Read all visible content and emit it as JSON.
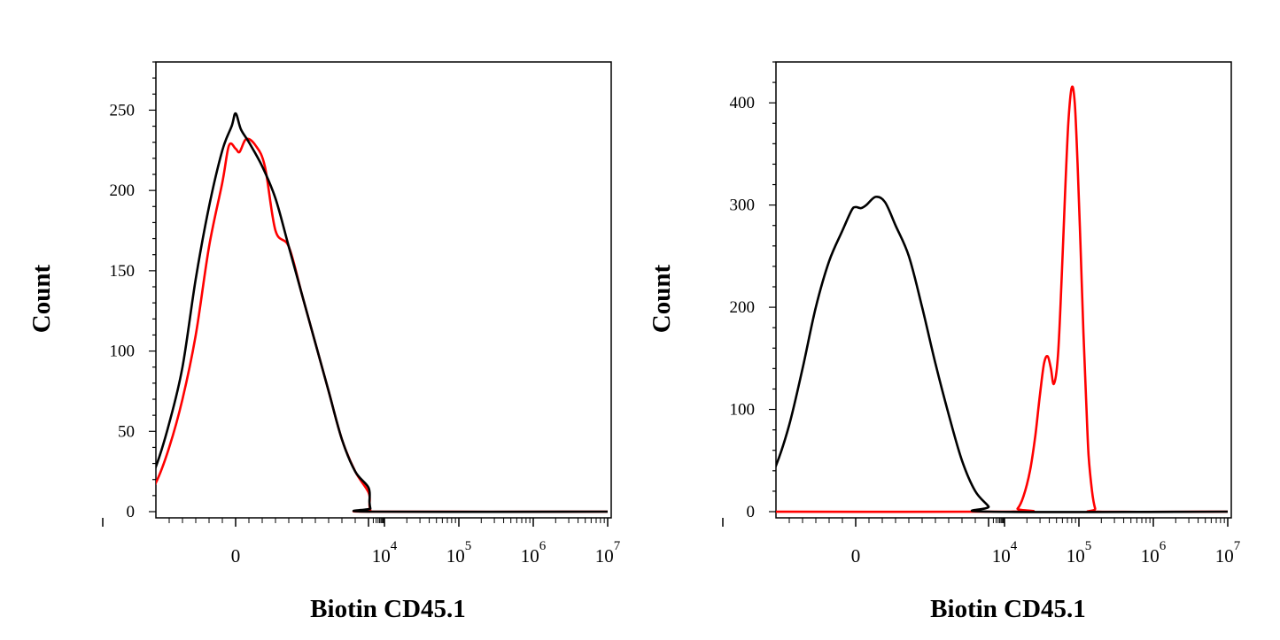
{
  "chart_data": [
    {
      "type": "line",
      "xlabel": "Biotin CD45.1",
      "ylabel": "Count",
      "x_scale": "biexponential",
      "ylim": [
        0,
        280
      ],
      "y_ticks": [
        0,
        50,
        100,
        150,
        200,
        250
      ],
      "x_ticks": [
        {
          "base": "0",
          "exp": ""
        },
        {
          "base": "10",
          "exp": "4"
        },
        {
          "base": "10",
          "exp": "5"
        },
        {
          "base": "10",
          "exp": "6"
        },
        {
          "base": "10",
          "exp": "7"
        }
      ],
      "grid": false,
      "legend": "none",
      "series": [
        {
          "color": "#000000",
          "points": [
            [
              -1000,
              0
            ],
            [
              -800,
              2
            ],
            [
              -700,
              10
            ],
            [
              -600,
              28
            ],
            [
              -500,
              55
            ],
            [
              -400,
              90
            ],
            [
              -300,
              145
            ],
            [
              -200,
              190
            ],
            [
              -100,
              225
            ],
            [
              -30,
              240
            ],
            [
              0,
              248
            ],
            [
              40,
              238
            ],
            [
              100,
              230
            ],
            [
              200,
              215
            ],
            [
              300,
              195
            ],
            [
              400,
              165
            ],
            [
              500,
              135
            ],
            [
              600,
              105
            ],
            [
              700,
              75
            ],
            [
              800,
              45
            ],
            [
              900,
              25
            ],
            [
              1000,
              15
            ],
            [
              1150,
              6
            ],
            [
              1300,
              2
            ],
            [
              1500,
              0
            ],
            [
              10000000,
              0
            ]
          ]
        },
        {
          "color": "#ff0000",
          "points": [
            [
              -1000,
              0
            ],
            [
              -800,
              1
            ],
            [
              -700,
              6
            ],
            [
              -600,
              18
            ],
            [
              -500,
              40
            ],
            [
              -400,
              70
            ],
            [
              -300,
              110
            ],
            [
              -200,
              165
            ],
            [
              -100,
              205
            ],
            [
              -50,
              228
            ],
            [
              0,
              226
            ],
            [
              30,
              224
            ],
            [
              80,
              232
            ],
            [
              150,
              228
            ],
            [
              220,
              215
            ],
            [
              300,
              175
            ],
            [
              400,
              165
            ],
            [
              500,
              135
            ],
            [
              600,
              105
            ],
            [
              700,
              75
            ],
            [
              800,
              45
            ],
            [
              900,
              25
            ],
            [
              1000,
              12
            ],
            [
              1150,
              4
            ],
            [
              1300,
              1
            ],
            [
              1500,
              0
            ],
            [
              10000000,
              0
            ]
          ]
        }
      ]
    },
    {
      "type": "line",
      "xlabel": "Biotin CD45.1",
      "ylabel": "Count",
      "x_scale": "biexponential",
      "ylim": [
        0,
        440
      ],
      "y_ticks": [
        0,
        100,
        200,
        300,
        400
      ],
      "x_ticks": [
        {
          "base": "0",
          "exp": ""
        },
        {
          "base": "10",
          "exp": "4"
        },
        {
          "base": "10",
          "exp": "5"
        },
        {
          "base": "10",
          "exp": "6"
        },
        {
          "base": "10",
          "exp": "7"
        }
      ],
      "grid": false,
      "legend": "none",
      "series": [
        {
          "color": "#000000",
          "points": [
            [
              -1000,
              0
            ],
            [
              -800,
              5
            ],
            [
              -700,
              20
            ],
            [
              -600,
              45
            ],
            [
              -500,
              85
            ],
            [
              -400,
              140
            ],
            [
              -300,
              200
            ],
            [
              -200,
              245
            ],
            [
              -100,
              275
            ],
            [
              -30,
              295
            ],
            [
              0,
              298
            ],
            [
              40,
              297
            ],
            [
              80,
              300
            ],
            [
              150,
              308
            ],
            [
              220,
              303
            ],
            [
              300,
              280
            ],
            [
              400,
              250
            ],
            [
              500,
              200
            ],
            [
              600,
              145
            ],
            [
              700,
              95
            ],
            [
              800,
              50
            ],
            [
              900,
              20
            ],
            [
              1000,
              5
            ],
            [
              1100,
              0
            ],
            [
              10000000,
              0
            ]
          ]
        },
        {
          "color": "#ff0000",
          "points": [
            [
              -1000,
              0
            ],
            [
              12000,
              0
            ],
            [
              15000,
              3
            ],
            [
              18000,
              15
            ],
            [
              22000,
              40
            ],
            [
              26000,
              75
            ],
            [
              30000,
              115
            ],
            [
              34000,
              145
            ],
            [
              38000,
              152
            ],
            [
              42000,
              140
            ],
            [
              46000,
              125
            ],
            [
              52000,
              150
            ],
            [
              58000,
              220
            ],
            [
              65000,
              310
            ],
            [
              72000,
              380
            ],
            [
              80000,
              415
            ],
            [
              88000,
              400
            ],
            [
              96000,
              340
            ],
            [
              105000,
              260
            ],
            [
              115000,
              175
            ],
            [
              125000,
              110
            ],
            [
              135000,
              55
            ],
            [
              150000,
              20
            ],
            [
              165000,
              3
            ],
            [
              180000,
              0
            ],
            [
              10000000,
              0
            ]
          ]
        }
      ]
    }
  ]
}
